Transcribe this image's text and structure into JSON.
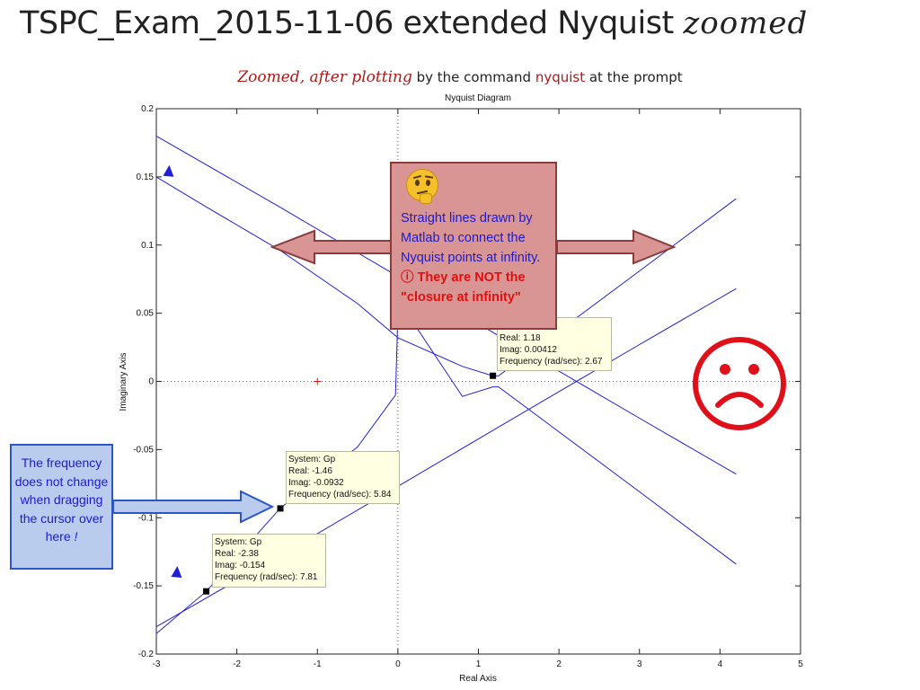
{
  "slide": {
    "title_main": "TSPC_Exam_2015-11-06 extended Nyquist ",
    "title_italic": "zoomed",
    "subtitle_italic": "Zoomed, after plotting",
    "subtitle_mid": " by the command ",
    "subtitle_cmd": "nyquist",
    "subtitle_end": " at the prompt"
  },
  "callout": {
    "icon": "thinking-face-icon",
    "line1": "Straight lines drawn by Matlab to connect the Nyquist  points at infinity.",
    "warn_symbol": "ⓘ",
    "line2": " They are NOT the \"closure at infinity\""
  },
  "freq_note": {
    "text": "The frequency does not change when dragging the cursor over here",
    "emphasis": "!"
  },
  "frown_icon": "frowning-face-icon",
  "colors": {
    "curve": "#2020d8",
    "callout_fill": "#d99494",
    "callout_border": "#8a3c3c",
    "note_fill": "#b9ccee",
    "note_border": "#2b56c6",
    "warn": "#e01010",
    "frown": "#e0101a",
    "datatip_bg": "#ffffe1"
  },
  "datatips": [
    {
      "lines": [
        "Real: 1.18",
        "Imag: 0.00412",
        "Frequency (rad/sec): 2.67"
      ]
    },
    {
      "lines": [
        "System: Gp",
        "Real: -1.46",
        "Imag: -0.0932",
        "Frequency (rad/sec): 5.84"
      ]
    },
    {
      "lines": [
        "System: Gp",
        "Real: -2.38",
        "Imag: -0.154",
        "Frequency (rad/sec): 7.81"
      ]
    }
  ],
  "chart_data": {
    "type": "line",
    "title": "Nyquist Diagram",
    "xlabel": "Real Axis",
    "ylabel": "Imaginary Axis",
    "xlim": [
      -3,
      5
    ],
    "ylim": [
      -0.2,
      0.2
    ],
    "xticks": [
      -3,
      -2,
      -1,
      0,
      1,
      2,
      3,
      4,
      5
    ],
    "yticks": [
      -0.2,
      -0.15,
      -0.1,
      -0.05,
      0,
      0.05,
      0.1,
      0.15,
      0.2
    ],
    "ytick_labels": [
      "-0.2",
      "-0.15",
      "-0.1",
      "-0.05",
      "0",
      "0.05",
      "0.1",
      "0.15",
      "0.2"
    ],
    "grid": "dotted zero lines",
    "critical_point": [
      -1,
      0
    ],
    "series": [
      {
        "x": [
          -3.0,
          -1.5,
          0.0,
          1.18,
          2.0,
          3.0,
          4.2
        ],
        "y": [
          0.18,
          0.129,
          0.077,
          0.036,
          0.0075,
          -0.027,
          -0.068
        ]
      },
      {
        "x": [
          -3.0,
          -1.5,
          0.0,
          1.18,
          2.0,
          3.0,
          4.2
        ],
        "y": [
          -0.18,
          -0.129,
          -0.077,
          -0.036,
          -0.0075,
          0.027,
          0.068
        ]
      },
      {
        "x": [
          -3.0,
          -2.38,
          -1.46,
          -0.5,
          0.0,
          0.8,
          1.18,
          1.25,
          2.0,
          3.0,
          4.2
        ],
        "y": [
          0.15,
          0.128,
          0.096,
          0.057,
          0.032,
          0.011,
          0.004,
          0.004,
          0.037,
          0.081,
          0.134
        ]
      },
      {
        "x": [
          -3.0,
          -2.38,
          -1.46,
          -0.5,
          -0.03,
          -0.01,
          0.0,
          0.8,
          1.18,
          1.25,
          2.0,
          3.0,
          4.2
        ],
        "y": [
          -0.185,
          -0.154,
          -0.093,
          -0.048,
          -0.01,
          0.03,
          0.06,
          -0.011,
          -0.004,
          -0.004,
          -0.037,
          -0.081,
          -0.134
        ]
      }
    ],
    "markers": [
      {
        "x": 1.18,
        "y": 0.00412
      },
      {
        "x": -1.46,
        "y": -0.0932
      },
      {
        "x": -2.38,
        "y": -0.154
      }
    ],
    "direction_arrows": [
      {
        "x": -2.85,
        "y": 0.154,
        "dir": "up"
      },
      {
        "x": -2.75,
        "y": -0.14,
        "dir": "up"
      }
    ]
  }
}
